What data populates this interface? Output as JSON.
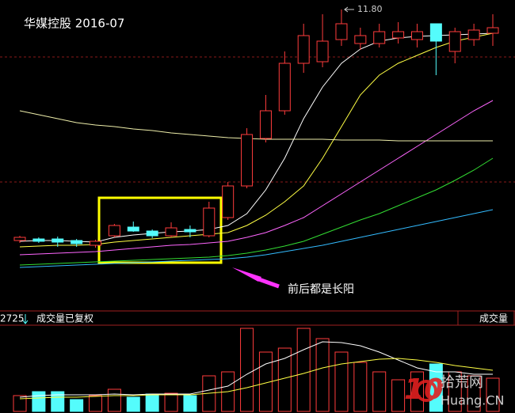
{
  "chart_data": [
    {
      "type": "candlestick",
      "title": "华媒控股 2016-07",
      "categories": [
        null,
        null,
        null,
        null,
        null,
        null,
        null,
        null,
        null,
        null,
        null,
        null,
        null,
        null,
        null,
        null,
        null,
        null,
        null,
        null,
        null,
        null,
        null,
        null,
        null,
        null
      ],
      "open": [
        5.96,
        6.0,
        6.0,
        5.96,
        5.84,
        6.08,
        6.3,
        6.2,
        6.08,
        6.24,
        6.08,
        6.54,
        7.34,
        8.54,
        9.24,
        10.44,
        10.48,
        11.04,
        10.94,
        10.94,
        11.08,
        11.04,
        11.44,
        10.74,
        11.04,
        11.2
      ],
      "close": [
        6.04,
        5.94,
        5.92,
        5.88,
        5.94,
        6.34,
        6.2,
        6.08,
        6.28,
        6.18,
        6.78,
        7.34,
        8.64,
        9.24,
        10.44,
        11.14,
        11.0,
        11.44,
        11.14,
        11.24,
        11.24,
        11.24,
        11.0,
        11.24,
        11.28,
        11.34
      ],
      "high": [
        6.08,
        6.04,
        6.06,
        6.0,
        5.98,
        6.38,
        6.44,
        6.24,
        6.42,
        6.34,
        6.94,
        7.44,
        8.8,
        9.64,
        10.74,
        11.44,
        11.68,
        11.8,
        11.34,
        11.44,
        11.48,
        11.44,
        11.44,
        11.34,
        11.44,
        11.68
      ],
      "low": [
        5.9,
        5.9,
        5.8,
        5.8,
        5.78,
        6.04,
        6.18,
        6.02,
        6.04,
        6.04,
        6.04,
        6.48,
        7.28,
        8.44,
        9.14,
        10.2,
        10.34,
        10.88,
        10.78,
        10.84,
        10.94,
        10.84,
        10.14,
        10.44,
        10.88,
        10.88
      ],
      "up_color": "#ff3c3c",
      "down_color": "#54fcfc",
      "ylim": [
        4.24,
        12.04
      ],
      "peak": {
        "value": 11.8,
        "label": "11.80"
      },
      "annotation": "前后都是长阳",
      "series": [
        {
          "color": "#ffffff",
          "values": [
            5.94,
            5.96,
            5.96,
            5.94,
            5.92,
            6.04,
            6.1,
            6.14,
            6.18,
            6.2,
            6.24,
            6.34,
            6.64,
            7.24,
            8.04,
            9.04,
            9.84,
            10.44,
            10.8,
            11.0,
            11.08,
            11.12,
            11.14,
            11.16,
            11.18,
            11.2
          ]
        },
        {
          "color": "#ffff44",
          "values": [
            5.8,
            5.82,
            5.84,
            5.84,
            5.86,
            5.92,
            5.96,
            6.0,
            6.04,
            6.08,
            6.12,
            6.16,
            6.34,
            6.6,
            6.94,
            7.34,
            8.04,
            8.84,
            9.64,
            10.14,
            10.44,
            10.64,
            10.84,
            11.0,
            11.1,
            11.2
          ]
        },
        {
          "color": "#ff66ff",
          "values": [
            5.6,
            5.62,
            5.64,
            5.66,
            5.68,
            5.72,
            5.76,
            5.8,
            5.84,
            5.86,
            5.9,
            5.94,
            6.04,
            6.16,
            6.34,
            6.54,
            6.84,
            7.14,
            7.44,
            7.74,
            8.04,
            8.34,
            8.64,
            8.94,
            9.24,
            9.5
          ]
        },
        {
          "color": "#33dd33",
          "values": [
            5.34,
            5.36,
            5.38,
            5.4,
            5.42,
            5.44,
            5.46,
            5.48,
            5.5,
            5.52,
            5.54,
            5.58,
            5.64,
            5.72,
            5.82,
            5.94,
            6.12,
            6.3,
            6.48,
            6.64,
            6.84,
            7.04,
            7.24,
            7.48,
            7.74,
            8.04
          ]
        },
        {
          "color": "#33bbff",
          "values": [
            5.28,
            5.3,
            5.32,
            5.34,
            5.36,
            5.38,
            5.4,
            5.42,
            5.44,
            5.46,
            5.48,
            5.5,
            5.54,
            5.6,
            5.68,
            5.76,
            5.84,
            5.94,
            6.04,
            6.14,
            6.24,
            6.34,
            6.44,
            6.54,
            6.64,
            6.74
          ]
        },
        {
          "color": "#eeeeaa",
          "values": [
            9.24,
            9.14,
            9.04,
            8.94,
            8.88,
            8.84,
            8.78,
            8.74,
            8.68,
            8.64,
            8.6,
            8.56,
            8.54,
            8.52,
            8.52,
            8.52,
            8.52,
            8.5,
            8.5,
            8.5,
            8.48,
            8.48,
            8.48,
            8.48,
            8.48,
            8.48
          ]
        }
      ]
    },
    {
      "type": "bar",
      "title": "成交量已复权",
      "label": "成交量",
      "readout": 2725,
      "values": [
        20,
        25,
        25,
        15,
        20,
        28,
        18,
        22,
        23,
        20,
        45,
        50,
        105,
        75,
        80,
        105,
        92,
        75,
        62,
        50,
        40,
        50,
        60,
        50,
        45,
        42
      ],
      "colors": [
        "#ff3c3c",
        "#54fcfc",
        "#54fcfc",
        "#54fcfc",
        "#ff3c3c",
        "#ff3c3c",
        "#54fcfc",
        "#54fcfc",
        "#ff3c3c",
        "#54fcfc",
        "#ff3c3c",
        "#ff3c3c",
        "#ff3c3c",
        "#ff3c3c",
        "#ff3c3c",
        "#ff3c3c",
        "#ff3c3c",
        "#ff3c3c",
        "#ff3c3c",
        "#ff3c3c",
        "#ff3c3c",
        "#ff3c3c",
        "#54fcfc",
        "#ff3c3c",
        "#ff3c3c",
        "#ff3c3c"
      ],
      "ylim": [
        0,
        110
      ],
      "series": [
        {
          "color": "#ffffff",
          "values": [
            18,
            20,
            21,
            21,
            21,
            22,
            21,
            22,
            22,
            22,
            27,
            32,
            47,
            60,
            67,
            78,
            88,
            87,
            83,
            75,
            65,
            55,
            50,
            50,
            47,
            47
          ]
        },
        {
          "color": "#ffff44",
          "values": [
            16,
            17,
            18,
            18,
            19,
            20,
            20,
            21,
            21,
            21,
            23,
            25,
            30,
            36,
            42,
            48,
            55,
            60,
            63,
            66,
            67,
            65,
            62,
            58,
            55,
            52
          ]
        }
      ]
    }
  ],
  "watermark": {
    "logo": "10",
    "name": "拾荒网",
    "domain": "Huang.CN"
  }
}
